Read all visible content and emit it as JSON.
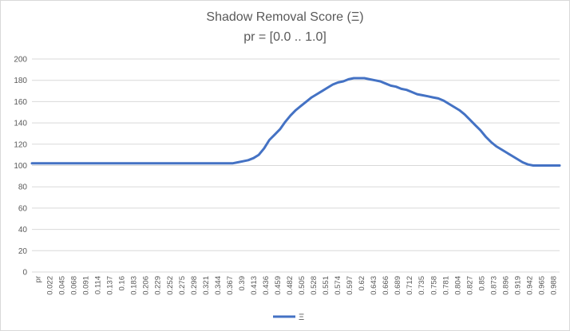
{
  "chart_data": {
    "type": "line",
    "title": "Shadow Removal Score (Ξ)",
    "subtitle": "pr = [0.0 .. 1.0]",
    "xlabel": "",
    "ylabel": "",
    "ylim": [
      0,
      200
    ],
    "yticks": [
      0,
      20,
      40,
      60,
      80,
      100,
      120,
      140,
      160,
      180,
      200
    ],
    "x_tick_labels": [
      "pr",
      "0.022",
      "0.045",
      "0.068",
      "0.091",
      "0.114",
      "0.137",
      "0.16",
      "0.183",
      "0.206",
      "0.229",
      "0.252",
      "0.275",
      "0.298",
      "0.321",
      "0.344",
      "0.367",
      "0.39",
      "0.413",
      "0.436",
      "0.459",
      "0.482",
      "0.505",
      "0.528",
      "0.551",
      "0.574",
      "0.597",
      "0.62",
      "0.643",
      "0.666",
      "0.689",
      "0.712",
      "0.735",
      "0.758",
      "0.781",
      "0.804",
      "0.827",
      "0.85",
      "0.873",
      "0.896",
      "0.919",
      "0.942",
      "0.965",
      "0.988"
    ],
    "grid": true,
    "legend": "bottom",
    "color": "#4472C4",
    "series": [
      {
        "name": "Ξ",
        "x": [
          0.0,
          0.05,
          0.1,
          0.15,
          0.2,
          0.25,
          0.3,
          0.34,
          0.36,
          0.38,
          0.39,
          0.4,
          0.41,
          0.42,
          0.43,
          0.44,
          0.45,
          0.46,
          0.47,
          0.48,
          0.49,
          0.5,
          0.51,
          0.52,
          0.53,
          0.54,
          0.55,
          0.56,
          0.57,
          0.58,
          0.59,
          0.6,
          0.61,
          0.62,
          0.63,
          0.64,
          0.65,
          0.66,
          0.67,
          0.68,
          0.69,
          0.7,
          0.71,
          0.72,
          0.73,
          0.74,
          0.75,
          0.76,
          0.77,
          0.78,
          0.79,
          0.8,
          0.81,
          0.82,
          0.83,
          0.84,
          0.85,
          0.86,
          0.87,
          0.88,
          0.89,
          0.9,
          0.91,
          0.92,
          0.93,
          0.94,
          0.95,
          0.96,
          0.97,
          0.98,
          0.99,
          1.0
        ],
        "y": [
          102,
          102,
          102,
          102,
          102,
          102,
          102,
          102,
          102,
          102,
          103,
          104,
          105,
          107,
          110,
          116,
          124,
          129,
          134,
          141,
          147,
          152,
          156,
          160,
          164,
          167,
          170,
          173,
          176,
          178,
          179,
          181,
          182,
          182,
          182,
          181,
          180,
          179,
          177,
          175,
          174,
          172,
          171,
          169,
          167,
          166,
          165,
          164,
          163,
          161,
          158,
          155,
          152,
          148,
          143,
          138,
          133,
          127,
          122,
          118,
          115,
          112,
          109,
          106,
          103,
          101,
          100,
          100,
          100,
          100,
          100,
          100
        ]
      }
    ]
  }
}
